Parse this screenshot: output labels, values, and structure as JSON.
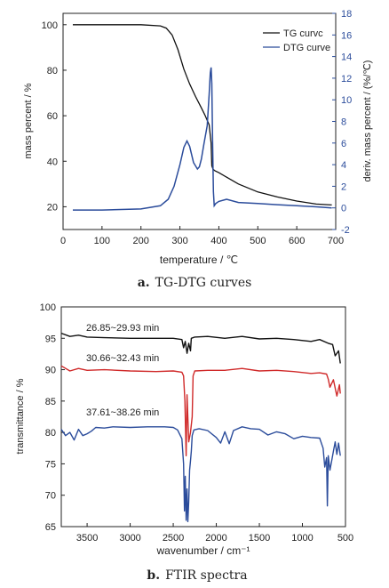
{
  "figure": {
    "caption_a": {
      "letter": "a.",
      "text": "TG-DTG curves"
    },
    "caption_b": {
      "letter": "b.",
      "text": "FTIR spectra"
    }
  },
  "chart_data": [
    {
      "type": "line",
      "xlabel": "temperature / ℃",
      "ylabel": "mass percent / %",
      "ylabel_right": "deriv. mass percent / (%/℃)",
      "xlim": [
        0,
        700
      ],
      "ylim": [
        10,
        105
      ],
      "ylim_right": [
        -2,
        18
      ],
      "x_ticks": [
        0,
        100,
        200,
        300,
        400,
        500,
        600,
        700
      ],
      "y_ticks": [
        20,
        40,
        60,
        80,
        100
      ],
      "y_ticks_right": [
        -2,
        0,
        2,
        4,
        6,
        8,
        10,
        12,
        14,
        16,
        18
      ],
      "legend_position": "top-right",
      "grid": false,
      "colors": {
        "TG": "#111111",
        "DTG": "#2b4c9b"
      },
      "series": [
        {
          "name": "TG curvc",
          "axis": "left",
          "x": [
            25,
            100,
            200,
            250,
            265,
            280,
            295,
            310,
            325,
            340,
            355,
            365,
            375,
            380,
            382,
            385,
            390,
            400,
            420,
            450,
            500,
            550,
            600,
            650,
            690
          ],
          "y": [
            100,
            100,
            100,
            99.5,
            98.5,
            95.5,
            89,
            80.5,
            74,
            68.5,
            63.5,
            60,
            56,
            48,
            38,
            36.5,
            35.8,
            35,
            33,
            30,
            26.5,
            24.3,
            22.5,
            21.2,
            20.8
          ]
        },
        {
          "name": "DTG curve",
          "axis": "right",
          "x": [
            25,
            100,
            200,
            250,
            270,
            285,
            300,
            310,
            318,
            325,
            335,
            345,
            350,
            355,
            362,
            370,
            375,
            378,
            380,
            382,
            384,
            386,
            388,
            392,
            400,
            420,
            450,
            500,
            550,
            600,
            650,
            690
          ],
          "y": [
            -0.2,
            -0.2,
            -0.1,
            0.2,
            0.8,
            2,
            4,
            5.6,
            6.2,
            5.7,
            4.2,
            3.6,
            3.8,
            4.5,
            6,
            7.6,
            10.5,
            12.5,
            13,
            11.5,
            6,
            1.5,
            0.2,
            0.4,
            0.6,
            0.8,
            0.5,
            0.4,
            0.3,
            0.2,
            0.1,
            0
          ]
        }
      ]
    },
    {
      "type": "line",
      "xlabel": "wavenumber / cm⁻¹",
      "ylabel": "transmittance / %",
      "xlim": [
        3800,
        500
      ],
      "ylim": [
        65,
        100
      ],
      "x_ticks": [
        3500,
        3000,
        2500,
        2000,
        1500,
        1000,
        500
      ],
      "y_ticks": [
        65,
        70,
        75,
        80,
        85,
        90,
        95,
        100
      ],
      "grid": false,
      "series": [
        {
          "name": "26.85~29.93 min",
          "color": "#111111",
          "x": [
            3800,
            3700,
            3600,
            3500,
            3300,
            3000,
            2700,
            2500,
            2400,
            2380,
            2360,
            2340,
            2320,
            2300,
            2290,
            2250,
            2100,
            1900,
            1700,
            1500,
            1300,
            1100,
            900,
            800,
            700,
            650,
            620,
            580,
            560
          ],
          "y": [
            95.8,
            95.3,
            95.5,
            95.2,
            95.1,
            95.0,
            95.0,
            95.0,
            94.8,
            93.5,
            94.5,
            92.6,
            94.2,
            93.0,
            95.0,
            95.2,
            95.3,
            95.0,
            95.3,
            94.9,
            95.0,
            94.8,
            94.5,
            94.8,
            94.2,
            94.0,
            92.2,
            93.0,
            91.0
          ]
        },
        {
          "name": "30.66~32.43 min",
          "color": "#d02a2a",
          "x": [
            3800,
            3700,
            3600,
            3500,
            3300,
            3000,
            2700,
            2500,
            2400,
            2380,
            2365,
            2350,
            2340,
            2320,
            2300,
            2280,
            2270,
            2250,
            2100,
            1900,
            1700,
            1500,
            1300,
            1100,
            900,
            800,
            720,
            700,
            680,
            640,
            600,
            570,
            560
          ],
          "y": [
            90.6,
            89.8,
            90.2,
            89.9,
            90.0,
            89.8,
            89.7,
            89.8,
            89.6,
            89.0,
            85.0,
            76.3,
            86.0,
            78.5,
            80.0,
            82.5,
            89.0,
            89.8,
            89.9,
            89.9,
            90.2,
            89.8,
            89.9,
            89.7,
            89.4,
            89.5,
            89.3,
            88.5,
            87.2,
            88.4,
            85.8,
            87.6,
            86.2
          ]
        },
        {
          "name": "37.61~38.26 min",
          "color": "#2b4c9b",
          "x": [
            3800,
            3750,
            3700,
            3650,
            3600,
            3550,
            3500,
            3450,
            3400,
            3300,
            3200,
            3000,
            2800,
            2600,
            2500,
            2450,
            2400,
            2380,
            2370,
            2360,
            2350,
            2340,
            2330,
            2320,
            2310,
            2300,
            2290,
            2280,
            2260,
            2200,
            2100,
            2000,
            1950,
            1900,
            1850,
            1800,
            1700,
            1600,
            1500,
            1400,
            1300,
            1200,
            1100,
            1000,
            900,
            800,
            760,
            740,
            720,
            710,
            700,
            680,
            660,
            640,
            620,
            600,
            580,
            560
          ],
          "y": [
            80.5,
            79.5,
            80.0,
            78.8,
            80.5,
            79.5,
            79.8,
            80.2,
            80.8,
            80.7,
            80.9,
            80.8,
            80.9,
            80.9,
            80.8,
            80.4,
            79.0,
            75.0,
            67.5,
            73.0,
            66.0,
            71.0,
            65.8,
            69.0,
            74.0,
            75.5,
            77.0,
            79.5,
            80.4,
            80.6,
            80.3,
            79.2,
            78.3,
            80.1,
            78.2,
            80.3,
            80.9,
            80.6,
            80.5,
            79.6,
            80.1,
            79.8,
            79.0,
            79.4,
            79.2,
            79.1,
            77.5,
            74.5,
            76.0,
            68.3,
            76.3,
            74.0,
            75.5,
            77.0,
            78.5,
            76.5,
            78.3,
            76.3
          ]
        }
      ]
    }
  ]
}
